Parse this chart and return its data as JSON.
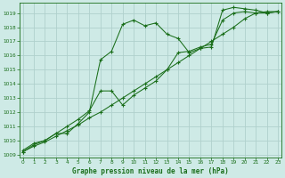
{
  "title": "Graphe pression niveau de la mer (hPa)",
  "bg_color": "#ceeae6",
  "grid_color": "#b0d0cc",
  "line_color": "#1a6e1a",
  "xlim": [
    -0.3,
    23.3
  ],
  "ylim": [
    1008.8,
    1019.7
  ],
  "xticks": [
    0,
    1,
    2,
    3,
    4,
    5,
    6,
    7,
    8,
    9,
    10,
    11,
    12,
    13,
    14,
    15,
    16,
    17,
    18,
    19,
    20,
    21,
    22,
    23
  ],
  "yticks": [
    1009,
    1010,
    1011,
    1012,
    1013,
    1014,
    1015,
    1016,
    1017,
    1018,
    1019
  ],
  "series1_x": [
    0,
    1,
    2,
    3,
    4,
    5,
    6,
    7,
    8,
    9,
    10,
    11,
    12,
    13,
    14,
    15,
    16,
    17,
    18,
    19,
    20,
    21,
    22,
    23
  ],
  "series1_y": [
    1009.3,
    1009.8,
    1010.0,
    1010.5,
    1010.5,
    1011.2,
    1012.0,
    1015.7,
    1016.3,
    1018.2,
    1018.5,
    1018.1,
    1018.3,
    1017.5,
    1017.2,
    1016.2,
    1016.5,
    1016.6,
    1019.2,
    1019.4,
    1019.3,
    1019.2,
    1019.0,
    1019.1
  ],
  "series2_x": [
    0,
    1,
    2,
    3,
    4,
    5,
    6,
    7,
    8,
    9,
    10,
    11,
    12,
    13,
    14,
    15,
    16,
    17,
    18,
    19,
    20,
    21,
    22,
    23
  ],
  "series2_y": [
    1009.2,
    1009.7,
    1010.0,
    1010.5,
    1011.0,
    1011.5,
    1012.1,
    1013.5,
    1013.5,
    1012.5,
    1013.2,
    1013.7,
    1014.2,
    1015.0,
    1016.2,
    1016.3,
    1016.6,
    1016.8,
    1018.5,
    1019.0,
    1019.1,
    1019.0,
    1019.0,
    1019.1
  ],
  "series3_x": [
    0,
    1,
    2,
    3,
    4,
    5,
    6,
    7,
    8,
    9,
    10,
    11,
    12,
    13,
    14,
    15,
    16,
    17,
    18,
    19,
    20,
    21,
    22,
    23
  ],
  "series3_y": [
    1009.2,
    1009.6,
    1009.9,
    1010.3,
    1010.7,
    1011.1,
    1011.6,
    1012.0,
    1012.5,
    1013.0,
    1013.5,
    1014.0,
    1014.5,
    1015.0,
    1015.5,
    1016.0,
    1016.5,
    1017.0,
    1017.5,
    1018.0,
    1018.6,
    1019.0,
    1019.1,
    1019.1
  ]
}
